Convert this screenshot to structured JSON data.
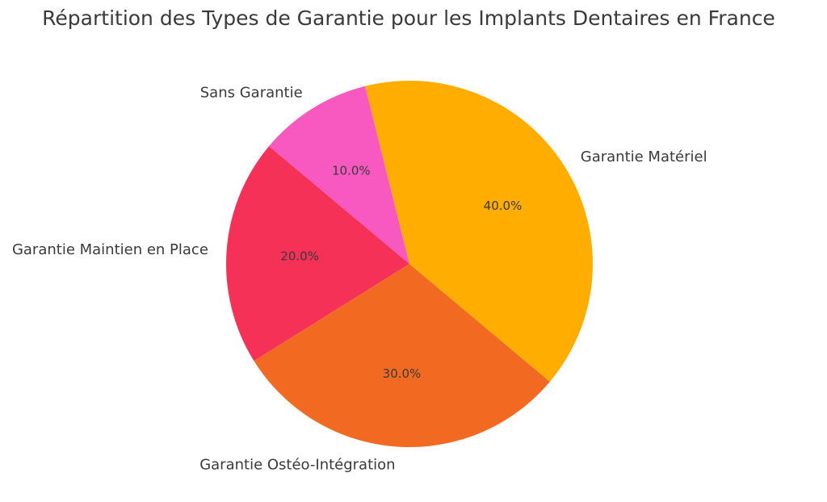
{
  "chart_data": {
    "type": "pie",
    "title": "Répartition des Types de Garantie pour les Implants Dentaires en France",
    "categories": [
      "Garantie Maintien en Place",
      "Garantie Ostéo-Intégration",
      "Garantie Matériel",
      "Sans Garantie"
    ],
    "values": [
      20,
      30,
      40,
      10
    ],
    "value_labels": [
      "20.0%",
      "30.0%",
      "40.0%",
      "10.0%"
    ],
    "colors": [
      "#F53158",
      "#F26A22",
      "#FFAE00",
      "#F859C0"
    ],
    "start_angle_deg": 140,
    "direction": "counterclockwise",
    "legend": "none"
  }
}
